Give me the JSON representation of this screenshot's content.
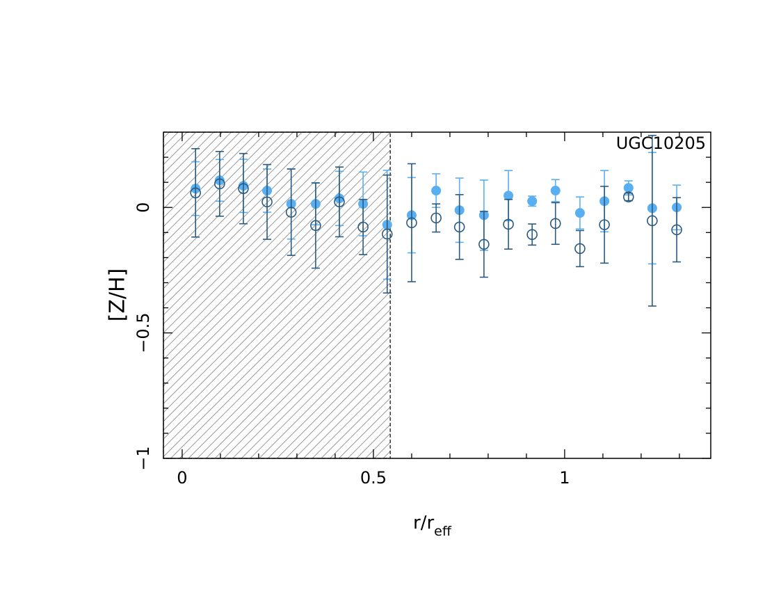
{
  "chart_data": {
    "type": "errorbar-scatter",
    "annotation": "UGC10205",
    "xlabel": "r/r",
    "xlabel_sub": "eff",
    "ylabel": "[Z/H]",
    "xlim": [
      -0.049,
      1.382
    ],
    "ylim": [
      -1,
      0.3
    ],
    "xticks": [
      0,
      0.5,
      1
    ],
    "yticks": [
      {
        "value": -1,
        "label": "−1"
      },
      {
        "value": -0.5,
        "label": "−0.5"
      },
      0
    ],
    "xminorticks": [
      0.1,
      0.2,
      0.3,
      0.4,
      0.6,
      0.7,
      0.8,
      0.9,
      1.1,
      1.2,
      1.3
    ],
    "yminorticks": [
      -0.9,
      -0.8,
      -0.7,
      -0.6,
      -0.4,
      -0.3,
      -0.2,
      -0.1,
      0.1,
      0.2
    ],
    "shaded_x_max": 0.544,
    "x": [
      0.035,
      0.098,
      0.16,
      0.222,
      0.285,
      0.349,
      0.411,
      0.473,
      0.536,
      0.6,
      0.664,
      0.725,
      0.789,
      0.853,
      0.915,
      0.976,
      1.04,
      1.104,
      1.167,
      1.229,
      1.293
    ],
    "series": [
      {
        "marker": "filled",
        "color": "#5aaff0",
        "values": [
          0.075,
          0.108,
          0.086,
          0.067,
          0.014,
          0.014,
          0.036,
          0.014,
          -0.069,
          -0.031,
          0.067,
          -0.011,
          -0.031,
          0.047,
          0.025,
          0.067,
          -0.022,
          0.025,
          0.078,
          -0.003,
          0
        ],
        "errors": [
          0.107,
          0.083,
          0.106,
          0.086,
          0.14,
          0.083,
          0.108,
          0.127,
          0.217,
          0.15,
          0.067,
          0.128,
          0.14,
          0.1,
          0.02,
          0.044,
          0.064,
          0.122,
          0.028,
          0.222,
          0.089
        ]
      },
      {
        "marker": "open",
        "color": "#2a5a80",
        "values": [
          0.058,
          0.094,
          0.075,
          0.022,
          -0.019,
          -0.072,
          0.022,
          -0.078,
          -0.106,
          -0.061,
          -0.042,
          -0.078,
          -0.147,
          -0.067,
          -0.108,
          -0.064,
          -0.164,
          -0.069,
          0.042,
          -0.053,
          -0.089
        ],
        "errors": [
          0.176,
          0.129,
          0.14,
          0.149,
          0.172,
          0.17,
          0.139,
          0.11,
          0.235,
          0.235,
          0.056,
          0.129,
          0.131,
          0.099,
          0.042,
          0.083,
          0.072,
          0.153,
          0.015,
          0.34,
          0.128
        ]
      }
    ]
  }
}
